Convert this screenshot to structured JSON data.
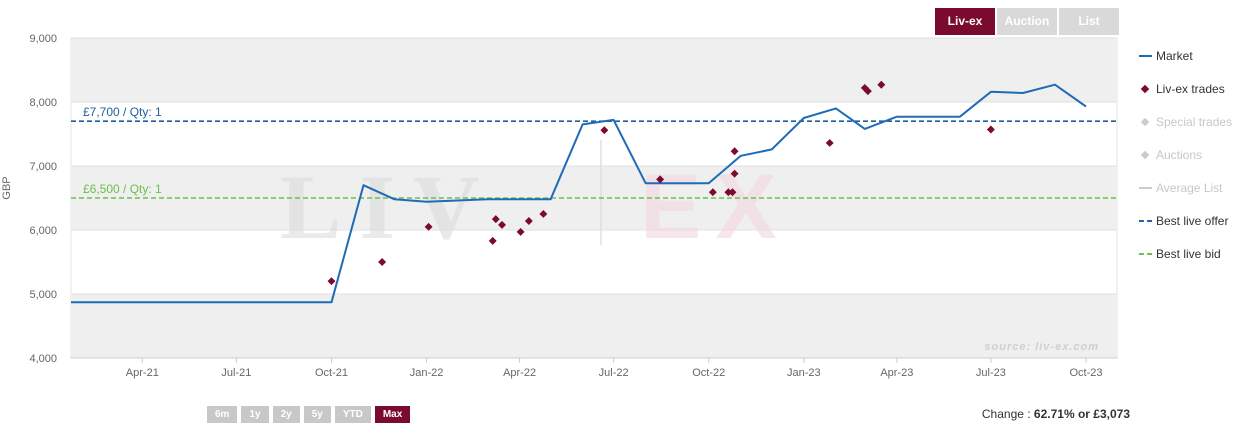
{
  "tabs": [
    {
      "label": "Liv-ex",
      "active": true
    },
    {
      "label": "Auction",
      "active": false
    },
    {
      "label": "List",
      "active": false
    }
  ],
  "legend": [
    {
      "label": "Market",
      "symbol": "line",
      "color": "#1f6bb8",
      "active": true
    },
    {
      "label": "Liv-ex trades",
      "symbol": "diamond",
      "color": "#7a0a2e",
      "active": true
    },
    {
      "label": "Special trades",
      "symbol": "diamond",
      "color": "#cccccc",
      "active": false
    },
    {
      "label": "Auctions",
      "symbol": "diamond",
      "color": "#cccccc",
      "active": false
    },
    {
      "label": "Average List",
      "symbol": "line",
      "color": "#cccccc",
      "active": false
    },
    {
      "label": "Best live offer",
      "symbol": "dash",
      "color": "#1f5f9e",
      "active": true
    },
    {
      "label": "Best live bid",
      "symbol": "dash",
      "color": "#6cc04a",
      "active": true
    }
  ],
  "ranges": [
    {
      "label": "6m",
      "active": false
    },
    {
      "label": "1y",
      "active": false
    },
    {
      "label": "2y",
      "active": false
    },
    {
      "label": "5y",
      "active": false
    },
    {
      "label": "YTD",
      "active": false
    },
    {
      "label": "Max",
      "active": true
    }
  ],
  "change": {
    "prefix": "Change : ",
    "value": "62.71% or £3,073"
  },
  "chart_data": {
    "type": "line",
    "ylabel": "GBP",
    "ylim": [
      4000,
      9000
    ],
    "yticks": [
      4000,
      5000,
      6000,
      7000,
      8000,
      9000
    ],
    "ytick_labels": [
      "4,000",
      "5,000",
      "6,000",
      "7,000",
      "8,000",
      "9,000"
    ],
    "xlim": [
      "2021-01-22",
      "2023-10-31"
    ],
    "xticks": [
      "2021-04-01",
      "2021-07-01",
      "2021-10-01",
      "2022-01-01",
      "2022-04-01",
      "2022-07-01",
      "2022-10-01",
      "2023-01-01",
      "2023-04-01",
      "2023-07-01",
      "2023-10-01"
    ],
    "xtick_labels": [
      "Apr-21",
      "Jul-21",
      "Oct-21",
      "Jan-22",
      "Apr-22",
      "Jul-22",
      "Oct-22",
      "Jan-23",
      "Apr-23",
      "Jul-23",
      "Oct-23"
    ],
    "colors": {
      "market": "#1f6bb8",
      "trades": "#7a0a2e",
      "offer": "#1f5f9e",
      "bid": "#6cc04a"
    },
    "series": [
      {
        "name": "Market",
        "points": [
          [
            "2021-01-22",
            4870
          ],
          [
            "2021-10-01",
            4870
          ],
          [
            "2021-11-01",
            6700
          ],
          [
            "2021-12-01",
            6480
          ],
          [
            "2022-01-01",
            6440
          ],
          [
            "2022-03-01",
            6480
          ],
          [
            "2022-05-01",
            6480
          ],
          [
            "2022-06-01",
            7650
          ],
          [
            "2022-07-01",
            7720
          ],
          [
            "2022-08-01",
            6730
          ],
          [
            "2022-10-01",
            6730
          ],
          [
            "2022-11-01",
            7160
          ],
          [
            "2022-12-01",
            7260
          ],
          [
            "2023-01-01",
            7750
          ],
          [
            "2023-02-01",
            7900
          ],
          [
            "2023-03-01",
            7580
          ],
          [
            "2023-04-01",
            7770
          ],
          [
            "2023-06-01",
            7770
          ],
          [
            "2023-07-01",
            8160
          ],
          [
            "2023-08-01",
            8140
          ],
          [
            "2023-09-01",
            8270
          ],
          [
            "2023-10-01",
            7930
          ]
        ]
      },
      {
        "name": "Liv-ex trades",
        "points": [
          [
            "2021-10-01",
            5200
          ],
          [
            "2021-11-19",
            5500
          ],
          [
            "2022-01-03",
            6050
          ],
          [
            "2022-03-06",
            5830
          ],
          [
            "2022-03-09",
            6170
          ],
          [
            "2022-03-15",
            6080
          ],
          [
            "2022-04-02",
            5970
          ],
          [
            "2022-04-10",
            6140
          ],
          [
            "2022-04-24",
            6250
          ],
          [
            "2022-06-22",
            7560
          ],
          [
            "2022-08-15",
            6790
          ],
          [
            "2022-10-05",
            6590
          ],
          [
            "2022-10-20",
            6590
          ],
          [
            "2022-10-24",
            6590
          ],
          [
            "2022-10-26",
            6880
          ],
          [
            "2022-10-26",
            7230
          ],
          [
            "2023-01-26",
            7360
          ],
          [
            "2023-03-01",
            8220
          ],
          [
            "2023-03-04",
            8170
          ],
          [
            "2023-03-17",
            8270
          ],
          [
            "2023-07-01",
            7570
          ]
        ]
      }
    ],
    "best_live_offer": {
      "value": 7700,
      "label": "£7,700 / Qty: 1"
    },
    "best_live_bid": {
      "value": 6500,
      "label": "£6,500 / Qty: 1"
    },
    "watermark": "LIV|EX",
    "credit": "source: liv-ex.com",
    "grid": true,
    "legend_position": "right"
  }
}
